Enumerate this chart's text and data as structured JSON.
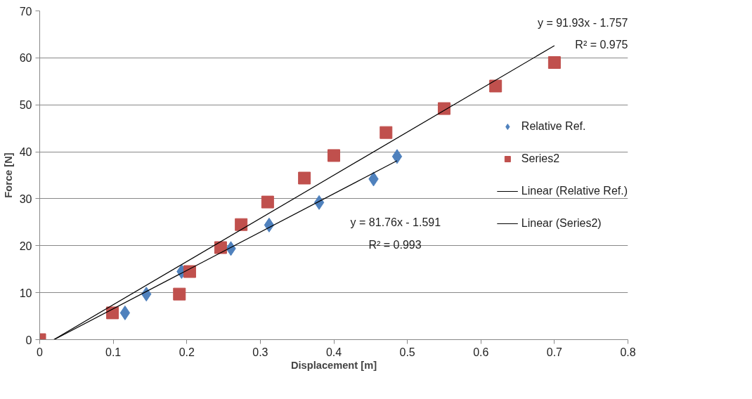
{
  "chart_data": {
    "type": "scatter",
    "xlabel": "Displacement [m]",
    "ylabel": "Force [N]",
    "xlim": [
      0,
      0.8
    ],
    "xticks": [
      0,
      0.1,
      0.2,
      0.3,
      0.4,
      0.5,
      0.6,
      0.7,
      0.8
    ],
    "ylim": [
      0,
      70
    ],
    "yticks": [
      0,
      10,
      20,
      30,
      40,
      50,
      60,
      70
    ],
    "grid": "y",
    "legend": "right",
    "series": [
      {
        "name": "Relative Ref.",
        "marker": "diamond",
        "color": "#4f81bd",
        "x": [
          0.116,
          0.145,
          0.193,
          0.26,
          0.312,
          0.38,
          0.454,
          0.486
        ],
        "values": [
          5.7,
          9.7,
          14.5,
          19.4,
          24.4,
          29.2,
          34.2,
          39.0
        ]
      },
      {
        "name": "Series2",
        "marker": "square",
        "color": "#c0504d",
        "x": [
          0,
          0.099,
          0.19,
          0.204,
          0.246,
          0.274,
          0.31,
          0.36,
          0.4,
          0.471,
          0.55,
          0.62,
          0.7
        ],
        "values": [
          0,
          5.7,
          9.7,
          14.5,
          19.6,
          24.5,
          29.3,
          34.4,
          39.2,
          44.1,
          49.2,
          54.0,
          59.0
        ]
      },
      {
        "name": "Linear (Relative Ref.)",
        "type": "line",
        "marker": "none",
        "color": "#000000",
        "x": [
          0.0195,
          0.486
        ],
        "values": [
          0,
          38.1
        ]
      },
      {
        "name": "Linear (Series2)",
        "type": "line",
        "marker": "none",
        "color": "#000000",
        "x": [
          0.0191,
          0.7
        ],
        "values": [
          0,
          62.6
        ]
      }
    ],
    "annotations": [
      "y = 91.93x - 1.757",
      "R² = 0.975",
      "y = 81.76x - 1.591",
      "R² = 0.993"
    ]
  }
}
